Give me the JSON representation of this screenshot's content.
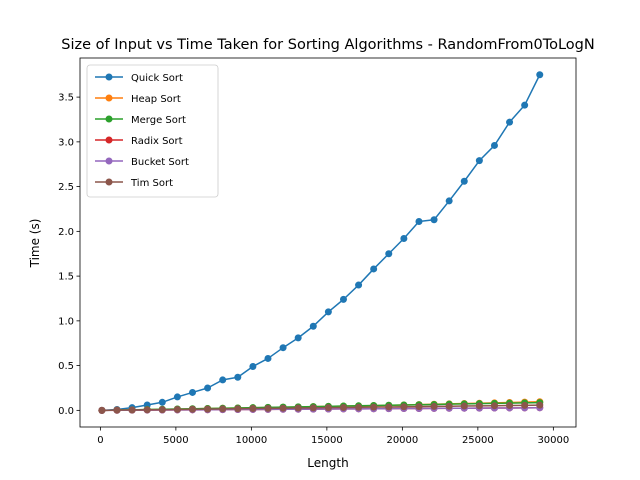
{
  "chart_data": {
    "type": "line",
    "title": "Size of Input vs Time Taken for Sorting Algorithms - RandomFrom0ToLogN",
    "xlabel": "Length",
    "ylabel": "Time (s)",
    "xlim": [
      -1350,
      31500
    ],
    "ylim": [
      -0.186,
      3.937
    ],
    "xticks": [
      0,
      5000,
      10000,
      15000,
      20000,
      25000,
      30000
    ],
    "yticks": [
      0.0,
      0.5,
      1.0,
      1.5,
      2.0,
      2.5,
      3.0,
      3.5
    ],
    "xtick_labels": [
      "0",
      "5000",
      "10000",
      "15000",
      "20000",
      "25000",
      "30000"
    ],
    "ytick_labels": [
      "0.0",
      "0.5",
      "1.0",
      "1.5",
      "2.0",
      "2.5",
      "3.0",
      "3.5"
    ],
    "grid": false,
    "legend_position": "top-left",
    "x": [
      100,
      1100,
      2100,
      3100,
      4100,
      5100,
      6100,
      7100,
      8100,
      9100,
      10100,
      11100,
      12100,
      13100,
      14100,
      15100,
      16100,
      17100,
      18100,
      19100,
      20100,
      21100,
      22100,
      23100,
      24100,
      25100,
      26100,
      27100,
      28100,
      29100
    ],
    "series": [
      {
        "name": "Quick Sort",
        "color": "#1f77b4",
        "values": [
          0.0,
          0.01,
          0.03,
          0.06,
          0.09,
          0.15,
          0.2,
          0.25,
          0.34,
          0.37,
          0.49,
          0.58,
          0.7,
          0.81,
          0.94,
          1.1,
          1.24,
          1.4,
          1.58,
          1.75,
          1.92,
          2.11,
          2.13,
          2.34,
          2.56,
          2.79,
          2.96,
          3.22,
          3.41,
          3.75
        ]
      },
      {
        "name": "Heap Sort",
        "color": "#ff7f0e",
        "values": [
          0.0,
          0.003,
          0.005,
          0.008,
          0.011,
          0.014,
          0.017,
          0.02,
          0.023,
          0.026,
          0.029,
          0.032,
          0.035,
          0.038,
          0.041,
          0.044,
          0.047,
          0.05,
          0.053,
          0.056,
          0.06,
          0.064,
          0.068,
          0.072,
          0.076,
          0.08,
          0.084,
          0.088,
          0.092,
          0.096
        ]
      },
      {
        "name": "Merge Sort",
        "color": "#2ca02c",
        "values": [
          0.0,
          0.003,
          0.006,
          0.009,
          0.012,
          0.015,
          0.018,
          0.021,
          0.024,
          0.027,
          0.03,
          0.033,
          0.036,
          0.039,
          0.042,
          0.045,
          0.048,
          0.051,
          0.054,
          0.057,
          0.06,
          0.063,
          0.066,
          0.069,
          0.072,
          0.075,
          0.078,
          0.081,
          0.084,
          0.087
        ]
      },
      {
        "name": "Radix Sort",
        "color": "#d62728",
        "values": [
          0.0,
          0.001,
          0.002,
          0.003,
          0.004,
          0.005,
          0.006,
          0.007,
          0.008,
          0.009,
          0.01,
          0.011,
          0.012,
          0.013,
          0.014,
          0.015,
          0.016,
          0.017,
          0.018,
          0.019,
          0.02,
          0.021,
          0.022,
          0.023,
          0.024,
          0.025,
          0.026,
          0.027,
          0.028,
          0.029
        ]
      },
      {
        "name": "Bucket Sort",
        "color": "#9467bd",
        "values": [
          0.0,
          0.001,
          0.002,
          0.003,
          0.004,
          0.005,
          0.006,
          0.007,
          0.008,
          0.009,
          0.01,
          0.011,
          0.012,
          0.013,
          0.014,
          0.015,
          0.016,
          0.017,
          0.018,
          0.019,
          0.02,
          0.021,
          0.022,
          0.023,
          0.024,
          0.025,
          0.026,
          0.027,
          0.028,
          0.029
        ]
      },
      {
        "name": "Tim Sort",
        "color": "#8c564b",
        "values": [
          0.0,
          0.002,
          0.004,
          0.006,
          0.008,
          0.01,
          0.012,
          0.014,
          0.016,
          0.018,
          0.02,
          0.022,
          0.024,
          0.026,
          0.028,
          0.03,
          0.032,
          0.034,
          0.036,
          0.038,
          0.04,
          0.042,
          0.044,
          0.046,
          0.048,
          0.05,
          0.052,
          0.054,
          0.056,
          0.058
        ]
      }
    ]
  }
}
